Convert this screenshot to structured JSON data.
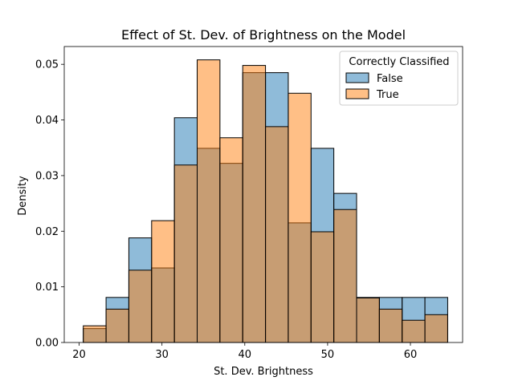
{
  "chart_data": {
    "type": "bar",
    "title": "Effect of St. Dev. of Brightness on the Model",
    "xlabel": "St. Dev. Brightness",
    "ylabel": "Density",
    "xlim": [
      18.2,
      66.3
    ],
    "ylim": [
      0,
      0.0532
    ],
    "x_ticks": [
      20,
      30,
      40,
      50,
      60
    ],
    "x_tick_labels": [
      "20",
      "30",
      "40",
      "50",
      "60"
    ],
    "y_ticks": [
      0.0,
      0.01,
      0.02,
      0.03,
      0.04,
      0.05
    ],
    "y_tick_labels": [
      "0.00",
      "0.01",
      "0.02",
      "0.03",
      "0.04",
      "0.05"
    ],
    "bin_edges": [
      20.5,
      23.25,
      26.0,
      28.75,
      31.5,
      34.25,
      37.0,
      39.75,
      42.5,
      45.25,
      48.0,
      50.75,
      53.5,
      56.25,
      59.0,
      61.75,
      64.5
    ],
    "legend": {
      "title": "Correctly Classified",
      "placement": "upper right"
    },
    "series": [
      {
        "name": "False",
        "color": "#1f77b4",
        "values": [
          0.0025,
          0.0081,
          0.0188,
          0.0134,
          0.0404,
          0.0349,
          0.0322,
          0.0485,
          0.0485,
          0.0215,
          0.0349,
          0.0268,
          0.0081,
          0.0081,
          0.0081,
          0.0081
        ]
      },
      {
        "name": "True",
        "color": "#ff7f0e",
        "values": [
          0.003,
          0.006,
          0.013,
          0.0219,
          0.0319,
          0.0508,
          0.0368,
          0.0498,
          0.0388,
          0.0448,
          0.0199,
          0.0239,
          0.008,
          0.006,
          0.004,
          0.005
        ]
      }
    ]
  }
}
